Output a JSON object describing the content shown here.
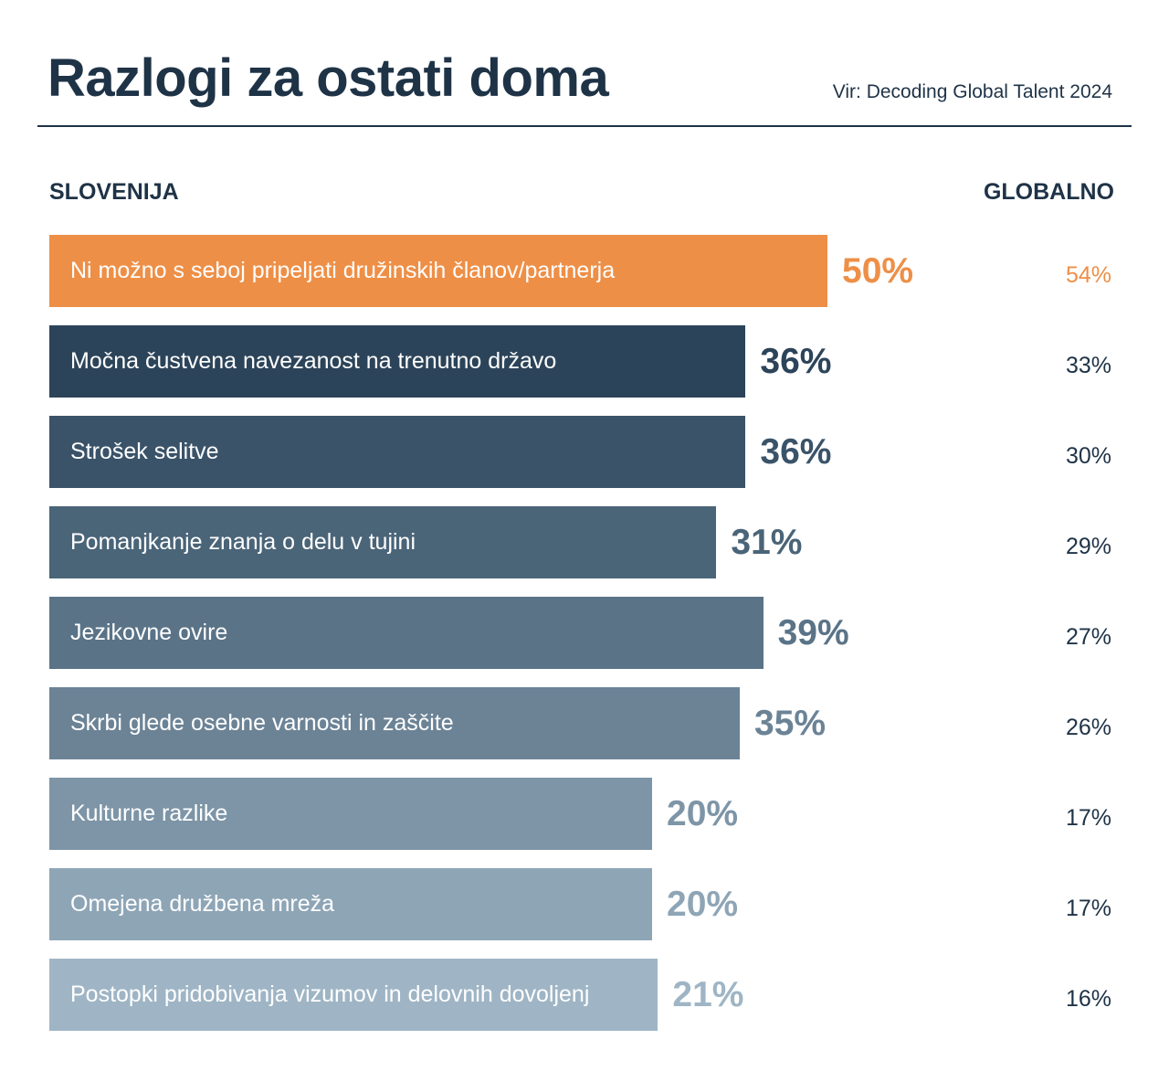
{
  "header": {
    "title": "Razlogi za ostati doma",
    "source": "Vir: Decoding Global Talent 2024"
  },
  "columns": {
    "left": "SLOVENIJA",
    "right": "GLOBALNO"
  },
  "chart_data": {
    "type": "bar",
    "orientation": "horizontal",
    "title": "Razlogi za ostati doma",
    "categories": [
      "Ni možno s seboj pripeljati družinskih članov/partnerja",
      "Močna čustvena navezanost na trenutno državo",
      "Strošek selitve",
      "Pomanjkanje znanja o delu v tujini",
      "Jezikovne ovire",
      "Skrbi glede osebne varnosti in zaščite",
      "Kulturne razlike",
      "Omejena družbena mreža",
      "Postopki pridobivanja vizumov in delovnih dovoljenj"
    ],
    "series": [
      {
        "name": "SLOVENIJA",
        "values": [
          50,
          36,
          36,
          31,
          39,
          35,
          20,
          20,
          21
        ],
        "labels": [
          "50%",
          "36%",
          "36%",
          "31%",
          "39%",
          "35%",
          "20%",
          "20%",
          "21%"
        ]
      },
      {
        "name": "GLOBALNO",
        "values": [
          54,
          33,
          30,
          29,
          27,
          26,
          17,
          17,
          16
        ],
        "labels": [
          "54%",
          "33%",
          "30%",
          "29%",
          "27%",
          "26%",
          "17%",
          "17%",
          "16%"
        ]
      }
    ],
    "colors": [
      "#ee8f47",
      "#2c4459",
      "#3a5369",
      "#4a6478",
      "#5a7387",
      "#6c8396",
      "#7d95a7",
      "#8ea5b6",
      "#9fb5c5"
    ],
    "global_colors": [
      "#ee8f47",
      "#1f3347",
      "#1f3347",
      "#1f3347",
      "#1f3347",
      "#1f3347",
      "#1f3347",
      "#1f3347",
      "#1f3347"
    ]
  }
}
